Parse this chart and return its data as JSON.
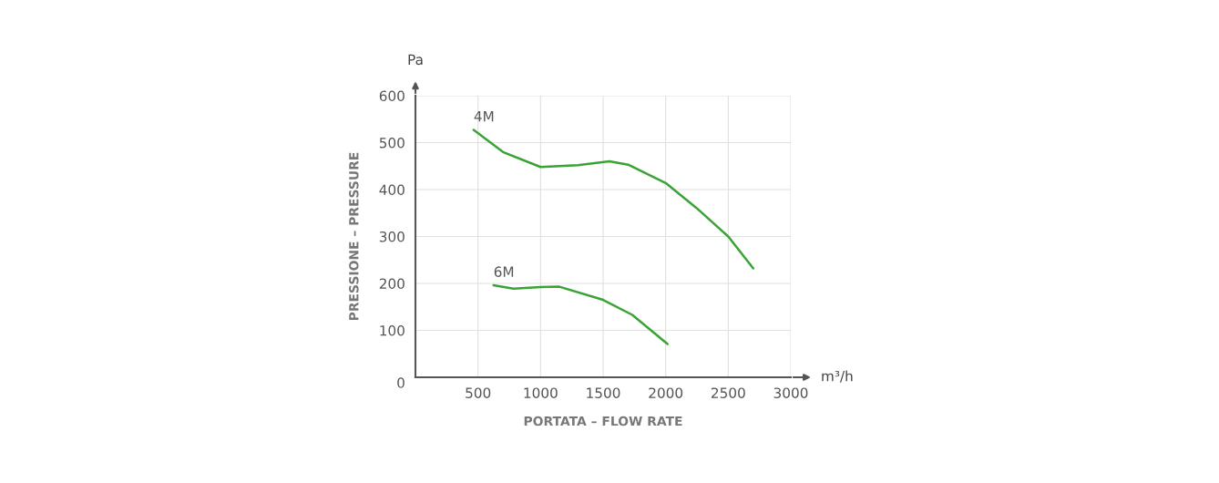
{
  "chart_data": {
    "type": "line",
    "xlabel": "PORTATA – FLOW RATE",
    "ylabel": "PRESSIONE – PRESSURE",
    "annotations": [
      "Pa",
      "m³/h"
    ],
    "series": [
      {
        "name": "4M",
        "color": "#3aa336",
        "x": [
          465,
          700,
          1000,
          1300,
          1550,
          1700,
          2000,
          2250,
          2500,
          2700
        ],
        "values": [
          527,
          480,
          448,
          452,
          460,
          453,
          414,
          360,
          300,
          232
        ]
      },
      {
        "name": "6M",
        "color": "#3aa336",
        "x": [
          624,
          783,
          1000,
          1150,
          1500,
          1733,
          2015
        ],
        "values": [
          196,
          189,
          192,
          193,
          165,
          133,
          71
        ]
      }
    ],
    "xlim": [
      0,
      3000
    ],
    "ylim": [
      0,
      600
    ],
    "xticks": [
      500,
      1000,
      1500,
      2000,
      2500,
      3000
    ],
    "yticks": [
      0,
      100,
      200,
      300,
      400,
      500,
      600
    ],
    "grid": true,
    "legend": false,
    "marker": "none",
    "line_style": "solid"
  }
}
